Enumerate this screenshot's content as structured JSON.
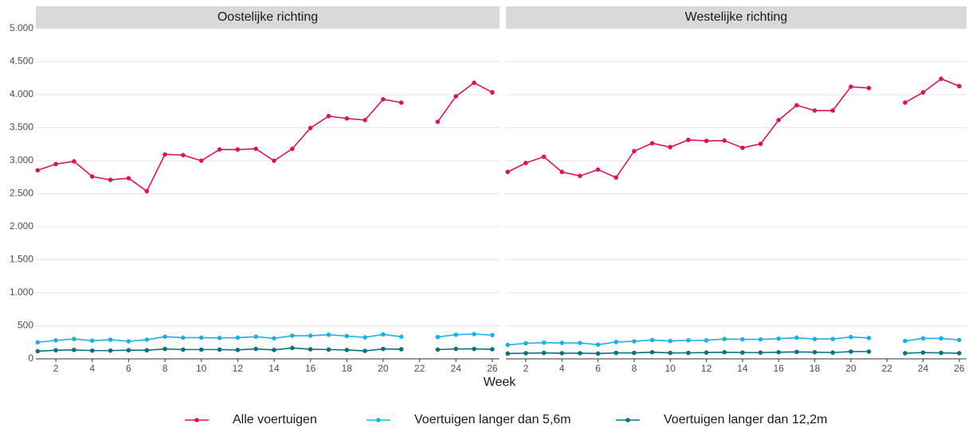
{
  "chart_data": [
    {
      "type": "line",
      "title": "Oostelijke richting",
      "xlabel": "Week",
      "x": [
        1,
        2,
        3,
        4,
        5,
        6,
        7,
        8,
        9,
        10,
        11,
        12,
        13,
        14,
        15,
        16,
        17,
        18,
        19,
        20,
        21,
        22,
        23,
        24,
        25,
        26
      ],
      "xlim": [
        0.9,
        26.4
      ],
      "xticks": [
        2,
        4,
        6,
        8,
        10,
        12,
        14,
        16,
        18,
        20,
        22,
        24,
        26
      ],
      "ylim": [
        0,
        5000
      ],
      "yticks": [
        0,
        500,
        {
          "value": 1000,
          "label": "1.000"
        },
        {
          "value": 1500,
          "label": "1.500"
        },
        {
          "value": 2000,
          "label": "2.000"
        },
        {
          "value": 2500,
          "label": "2.500"
        },
        {
          "value": 3000,
          "label": "3.000"
        },
        {
          "value": 3500,
          "label": "3.500"
        },
        {
          "value": 4000,
          "label": "4.000"
        },
        {
          "value": 4500,
          "label": "4.500"
        },
        {
          "value": 5000,
          "label": "5.000"
        }
      ],
      "grid": true,
      "legend": "bottom",
      "series": [
        {
          "name": "Alle voertuigen",
          "color": "#d6145f",
          "values": [
            2855,
            2950,
            2990,
            2760,
            2710,
            2735,
            2540,
            3095,
            3085,
            3000,
            3170,
            3170,
            3180,
            3000,
            3180,
            3495,
            3675,
            3640,
            3615,
            3930,
            3880,
            null,
            3590,
            3975,
            4180,
            4035
          ]
        },
        {
          "name": "Voertuigen langer dan 5,6m",
          "color": "#1fb0e0",
          "values": [
            250,
            280,
            300,
            275,
            290,
            265,
            290,
            335,
            320,
            320,
            315,
            320,
            335,
            310,
            350,
            350,
            365,
            345,
            325,
            370,
            335,
            null,
            330,
            365,
            375,
            360
          ]
        },
        {
          "name": "Voertuigen langer dan 12,2m",
          "color": "#0b7378",
          "values": [
            115,
            130,
            135,
            125,
            125,
            130,
            130,
            150,
            140,
            140,
            140,
            135,
            150,
            135,
            165,
            145,
            140,
            135,
            120,
            150,
            145,
            null,
            140,
            150,
            150,
            145
          ]
        }
      ]
    },
    {
      "type": "line",
      "title": "Westelijke richting",
      "x": [
        1,
        2,
        3,
        4,
        5,
        6,
        7,
        8,
        9,
        10,
        11,
        12,
        13,
        14,
        15,
        16,
        17,
        18,
        19,
        20,
        21,
        22,
        23,
        24,
        25,
        26
      ],
      "xlim": [
        0.9,
        26.4
      ],
      "xticks": [
        2,
        4,
        6,
        8,
        10,
        12,
        14,
        16,
        18,
        20,
        22,
        24,
        26
      ],
      "ylim": [
        0,
        5000
      ],
      "yticks": [
        0,
        500,
        1000,
        1500,
        2000,
        2500,
        3000,
        3500,
        4000,
        4500,
        5000
      ],
      "grid": true,
      "series": [
        {
          "color": "#d6145f",
          "values": [
            2830,
            2965,
            3060,
            2830,
            2770,
            2865,
            2745,
            3145,
            3265,
            3205,
            3315,
            3300,
            3305,
            3195,
            3255,
            3615,
            3840,
            3760,
            3760,
            4120,
            4100,
            null,
            3880,
            4035,
            4240,
            4130
          ]
        },
        {
          "color": "#1fb0e0",
          "values": [
            210,
            235,
            245,
            240,
            240,
            215,
            255,
            265,
            285,
            270,
            280,
            280,
            300,
            295,
            295,
            305,
            320,
            300,
            300,
            330,
            315,
            null,
            270,
            310,
            310,
            285
          ]
        },
        {
          "color": "#0b7378",
          "values": [
            80,
            85,
            90,
            85,
            85,
            80,
            90,
            90,
            100,
            90,
            90,
            95,
            100,
            95,
            95,
            100,
            105,
            100,
            95,
            110,
            110,
            null,
            85,
            95,
            90,
            85
          ]
        }
      ]
    }
  ]
}
